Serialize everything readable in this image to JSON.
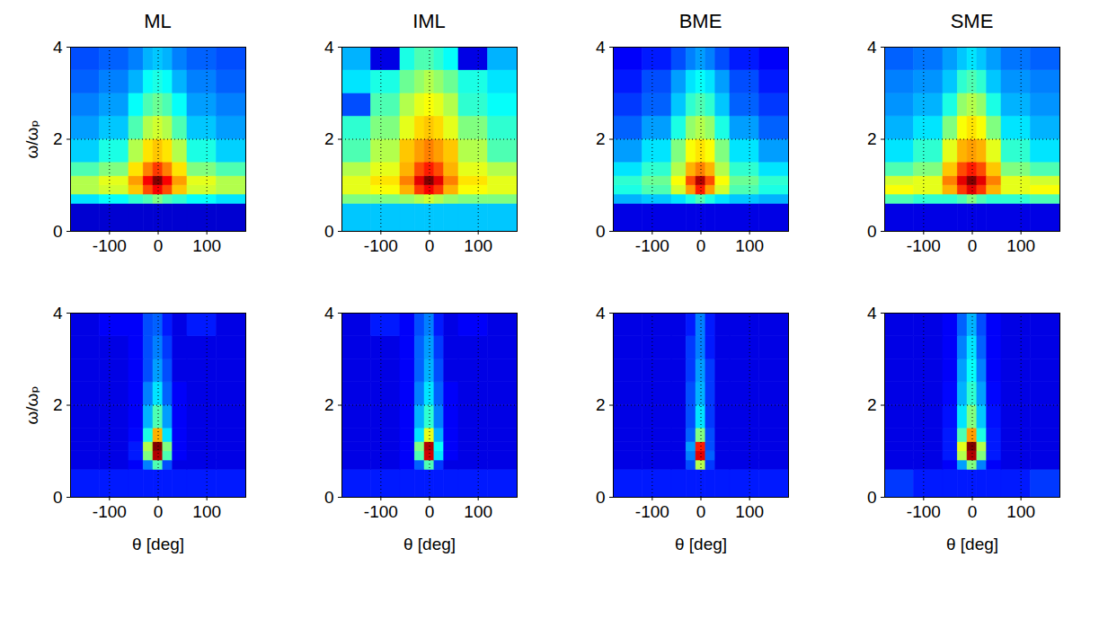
{
  "chart_data": [
    {
      "type": "heatmap",
      "title": "ML",
      "ylabel": "ω/ωₚ",
      "xlim": [
        -180,
        180
      ],
      "xticks": [
        -100,
        0,
        100
      ],
      "ylim": [
        0,
        4
      ],
      "yticks": [
        0,
        2,
        4
      ],
      "grid": true,
      "zlim": [
        0,
        1
      ],
      "x_edges": [
        -180,
        -120,
        -60,
        -30,
        -10,
        10,
        30,
        60,
        120,
        180
      ],
      "y_edges": [
        0,
        0.6,
        0.8,
        1.0,
        1.2,
        1.5,
        2,
        2.5,
        3,
        3.5,
        4
      ],
      "cells": [
        [
          0.08,
          0.08,
          0.08,
          0.08,
          0.08,
          0.08,
          0.08,
          0.08,
          0.08
        ],
        [
          0.35,
          0.38,
          0.42,
          0.45,
          0.5,
          0.45,
          0.42,
          0.38,
          0.35
        ],
        [
          0.55,
          0.58,
          0.68,
          0.8,
          0.88,
          0.8,
          0.68,
          0.58,
          0.55
        ],
        [
          0.55,
          0.6,
          0.72,
          0.88,
          1.0,
          0.88,
          0.72,
          0.6,
          0.55
        ],
        [
          0.45,
          0.5,
          0.65,
          0.75,
          0.82,
          0.75,
          0.65,
          0.5,
          0.45
        ],
        [
          0.33,
          0.4,
          0.55,
          0.65,
          0.68,
          0.65,
          0.55,
          0.4,
          0.33
        ],
        [
          0.28,
          0.32,
          0.45,
          0.55,
          0.58,
          0.55,
          0.45,
          0.32,
          0.28
        ],
        [
          0.25,
          0.28,
          0.38,
          0.45,
          0.48,
          0.45,
          0.38,
          0.28,
          0.25
        ],
        [
          0.22,
          0.25,
          0.3,
          0.38,
          0.4,
          0.38,
          0.3,
          0.25,
          0.22
        ],
        [
          0.2,
          0.22,
          0.25,
          0.3,
          0.32,
          0.3,
          0.25,
          0.22,
          0.2
        ]
      ]
    },
    {
      "type": "heatmap",
      "title": "IML",
      "xlim": [
        -180,
        180
      ],
      "xticks": [
        -100,
        0,
        100
      ],
      "ylim": [
        0,
        4
      ],
      "yticks": [
        0,
        2,
        4
      ],
      "grid": true,
      "zlim": [
        0,
        1
      ],
      "x_edges": [
        -180,
        -120,
        -60,
        -30,
        -10,
        10,
        30,
        60,
        120,
        180
      ],
      "y_edges": [
        0,
        0.6,
        0.8,
        1.0,
        1.2,
        1.5,
        2,
        2.5,
        3,
        3.5,
        4
      ],
      "cells": [
        [
          0.32,
          0.32,
          0.32,
          0.32,
          0.32,
          0.32,
          0.32,
          0.32,
          0.32
        ],
        [
          0.5,
          0.5,
          0.52,
          0.55,
          0.58,
          0.55,
          0.52,
          0.5,
          0.5
        ],
        [
          0.6,
          0.62,
          0.7,
          0.82,
          0.88,
          0.82,
          0.7,
          0.62,
          0.6
        ],
        [
          0.6,
          0.65,
          0.75,
          0.9,
          1.0,
          0.9,
          0.75,
          0.65,
          0.6
        ],
        [
          0.55,
          0.6,
          0.7,
          0.8,
          0.85,
          0.8,
          0.7,
          0.6,
          0.55
        ],
        [
          0.45,
          0.55,
          0.68,
          0.72,
          0.75,
          0.72,
          0.68,
          0.55,
          0.45
        ],
        [
          0.42,
          0.5,
          0.6,
          0.66,
          0.68,
          0.66,
          0.6,
          0.5,
          0.42
        ],
        [
          0.2,
          0.45,
          0.55,
          0.6,
          0.62,
          0.6,
          0.55,
          0.42,
          0.38
        ],
        [
          0.35,
          0.4,
          0.48,
          0.52,
          0.55,
          0.52,
          0.48,
          0.4,
          0.35
        ],
        [
          0.3,
          0.1,
          0.4,
          0.45,
          0.45,
          0.42,
          0.38,
          0.1,
          0.3
        ]
      ]
    },
    {
      "type": "heatmap",
      "title": "BME",
      "xlim": [
        -180,
        180
      ],
      "xticks": [
        -100,
        0,
        100
      ],
      "ylim": [
        0,
        4
      ],
      "yticks": [
        0,
        2,
        4
      ],
      "grid": true,
      "zlim": [
        0,
        1
      ],
      "x_edges": [
        -180,
        -120,
        -60,
        -30,
        -10,
        10,
        30,
        60,
        120,
        180
      ],
      "y_edges": [
        0,
        0.6,
        0.8,
        1.0,
        1.2,
        1.5,
        2,
        2.5,
        3,
        3.5,
        4
      ],
      "cells": [
        [
          0.1,
          0.1,
          0.1,
          0.1,
          0.1,
          0.1,
          0.1,
          0.1,
          0.1
        ],
        [
          0.3,
          0.32,
          0.35,
          0.4,
          0.45,
          0.4,
          0.35,
          0.32,
          0.3
        ],
        [
          0.4,
          0.45,
          0.58,
          0.72,
          0.85,
          0.72,
          0.58,
          0.45,
          0.4
        ],
        [
          0.42,
          0.48,
          0.62,
          0.8,
          0.95,
          0.8,
          0.62,
          0.48,
          0.42
        ],
        [
          0.35,
          0.42,
          0.55,
          0.7,
          0.75,
          0.7,
          0.55,
          0.42,
          0.35
        ],
        [
          0.28,
          0.35,
          0.5,
          0.62,
          0.65,
          0.62,
          0.5,
          0.35,
          0.28
        ],
        [
          0.22,
          0.28,
          0.4,
          0.52,
          0.55,
          0.52,
          0.4,
          0.28,
          0.22
        ],
        [
          0.18,
          0.22,
          0.32,
          0.42,
          0.45,
          0.42,
          0.32,
          0.22,
          0.18
        ],
        [
          0.15,
          0.2,
          0.28,
          0.35,
          0.38,
          0.35,
          0.28,
          0.2,
          0.15
        ],
        [
          0.12,
          0.15,
          0.2,
          0.25,
          0.28,
          0.25,
          0.2,
          0.15,
          0.12
        ]
      ]
    },
    {
      "type": "heatmap",
      "title": "SME",
      "xlim": [
        -180,
        180
      ],
      "xticks": [
        -100,
        0,
        100
      ],
      "ylim": [
        0,
        4
      ],
      "yticks": [
        0,
        2,
        4
      ],
      "grid": true,
      "zlim": [
        0,
        1
      ],
      "x_edges": [
        -180,
        -120,
        -60,
        -30,
        -10,
        10,
        30,
        60,
        120,
        180
      ],
      "y_edges": [
        0,
        0.6,
        0.8,
        1.0,
        1.2,
        1.5,
        2,
        2.5,
        3,
        3.5,
        4
      ],
      "cells": [
        [
          0.1,
          0.1,
          0.1,
          0.1,
          0.1,
          0.1,
          0.1,
          0.1,
          0.1
        ],
        [
          0.45,
          0.42,
          0.42,
          0.45,
          0.5,
          0.45,
          0.42,
          0.42,
          0.45
        ],
        [
          0.62,
          0.6,
          0.7,
          0.82,
          0.9,
          0.82,
          0.7,
          0.6,
          0.62
        ],
        [
          0.58,
          0.6,
          0.75,
          0.9,
          1.0,
          0.9,
          0.75,
          0.6,
          0.58
        ],
        [
          0.45,
          0.5,
          0.68,
          0.8,
          0.85,
          0.8,
          0.68,
          0.5,
          0.45
        ],
        [
          0.35,
          0.42,
          0.6,
          0.7,
          0.72,
          0.7,
          0.6,
          0.42,
          0.35
        ],
        [
          0.3,
          0.35,
          0.5,
          0.62,
          0.65,
          0.62,
          0.5,
          0.35,
          0.3
        ],
        [
          0.27,
          0.3,
          0.4,
          0.52,
          0.55,
          0.52,
          0.4,
          0.3,
          0.27
        ],
        [
          0.25,
          0.27,
          0.32,
          0.42,
          0.45,
          0.42,
          0.32,
          0.27,
          0.25
        ],
        [
          0.22,
          0.24,
          0.28,
          0.32,
          0.35,
          0.32,
          0.28,
          0.24,
          0.22
        ]
      ]
    },
    {
      "type": "heatmap",
      "xlabel": "θ [deg]",
      "ylabel": "ω/ωₚ",
      "xlim": [
        -180,
        180
      ],
      "xticks": [
        -100,
        0,
        100
      ],
      "ylim": [
        0,
        4
      ],
      "yticks": [
        0,
        2,
        4
      ],
      "grid": true,
      "zlim": [
        0,
        1
      ],
      "x_edges": [
        -180,
        -120,
        -60,
        -30,
        -10,
        10,
        30,
        60,
        120,
        180
      ],
      "y_edges": [
        0,
        0.6,
        0.8,
        1.0,
        1.2,
        1.5,
        2,
        2.5,
        3,
        3.5,
        4
      ],
      "cells": [
        [
          0.15,
          0.15,
          0.15,
          0.15,
          0.15,
          0.15,
          0.15,
          0.15,
          0.15
        ],
        [
          0.1,
          0.1,
          0.12,
          0.25,
          0.45,
          0.2,
          0.1,
          0.1,
          0.1
        ],
        [
          0.1,
          0.1,
          0.15,
          0.5,
          0.95,
          0.45,
          0.12,
          0.1,
          0.1
        ],
        [
          0.1,
          0.1,
          0.15,
          0.55,
          1.0,
          0.5,
          0.12,
          0.1,
          0.1
        ],
        [
          0.1,
          0.1,
          0.13,
          0.4,
          0.7,
          0.35,
          0.12,
          0.1,
          0.1
        ],
        [
          0.1,
          0.1,
          0.12,
          0.3,
          0.45,
          0.28,
          0.12,
          0.1,
          0.1
        ],
        [
          0.1,
          0.1,
          0.12,
          0.25,
          0.35,
          0.22,
          0.12,
          0.1,
          0.1
        ],
        [
          0.1,
          0.1,
          0.12,
          0.2,
          0.28,
          0.2,
          0.1,
          0.1,
          0.1
        ],
        [
          0.1,
          0.1,
          0.12,
          0.2,
          0.25,
          0.18,
          0.1,
          0.1,
          0.1
        ],
        [
          0.1,
          0.12,
          0.12,
          0.2,
          0.22,
          0.15,
          0.1,
          0.15,
          0.1
        ]
      ]
    },
    {
      "type": "heatmap",
      "xlabel": "θ [deg]",
      "xlim": [
        -180,
        180
      ],
      "xticks": [
        -100,
        0,
        100
      ],
      "ylim": [
        0,
        4
      ],
      "yticks": [
        0,
        2,
        4
      ],
      "grid": true,
      "zlim": [
        0,
        1
      ],
      "x_edges": [
        -180,
        -120,
        -60,
        -30,
        -10,
        10,
        30,
        60,
        120,
        180
      ],
      "y_edges": [
        0,
        0.6,
        0.8,
        1.0,
        1.2,
        1.5,
        2,
        2.5,
        3,
        3.5,
        4
      ],
      "cells": [
        [
          0.15,
          0.15,
          0.15,
          0.15,
          0.15,
          0.15,
          0.15,
          0.15,
          0.15
        ],
        [
          0.1,
          0.1,
          0.12,
          0.22,
          0.45,
          0.18,
          0.1,
          0.1,
          0.1
        ],
        [
          0.1,
          0.1,
          0.12,
          0.45,
          0.92,
          0.35,
          0.12,
          0.1,
          0.1
        ],
        [
          0.1,
          0.1,
          0.12,
          0.5,
          0.95,
          0.38,
          0.12,
          0.1,
          0.1
        ],
        [
          0.1,
          0.1,
          0.12,
          0.35,
          0.6,
          0.3,
          0.12,
          0.1,
          0.1
        ],
        [
          0.1,
          0.1,
          0.12,
          0.3,
          0.42,
          0.25,
          0.12,
          0.1,
          0.1
        ],
        [
          0.1,
          0.1,
          0.12,
          0.25,
          0.35,
          0.22,
          0.12,
          0.1,
          0.1
        ],
        [
          0.1,
          0.1,
          0.12,
          0.22,
          0.3,
          0.2,
          0.1,
          0.1,
          0.1
        ],
        [
          0.1,
          0.1,
          0.12,
          0.22,
          0.28,
          0.18,
          0.1,
          0.1,
          0.1
        ],
        [
          0.1,
          0.15,
          0.12,
          0.2,
          0.25,
          0.15,
          0.1,
          0.12,
          0.1
        ]
      ]
    },
    {
      "type": "heatmap",
      "xlabel": "θ [deg]",
      "xlim": [
        -180,
        180
      ],
      "xticks": [
        -100,
        0,
        100
      ],
      "ylim": [
        0,
        4
      ],
      "yticks": [
        0,
        2,
        4
      ],
      "grid": true,
      "zlim": [
        0,
        1
      ],
      "x_edges": [
        -180,
        -120,
        -60,
        -30,
        -10,
        10,
        30,
        60,
        120,
        180
      ],
      "y_edges": [
        0,
        0.6,
        0.8,
        1.0,
        1.2,
        1.5,
        2,
        2.5,
        3,
        3.5,
        4
      ],
      "cells": [
        [
          0.15,
          0.15,
          0.15,
          0.15,
          0.15,
          0.15,
          0.15,
          0.15,
          0.15
        ],
        [
          0.1,
          0.1,
          0.1,
          0.2,
          0.55,
          0.18,
          0.1,
          0.1,
          0.1
        ],
        [
          0.1,
          0.1,
          0.1,
          0.25,
          0.9,
          0.22,
          0.1,
          0.1,
          0.1
        ],
        [
          0.1,
          0.1,
          0.1,
          0.28,
          0.85,
          0.2,
          0.1,
          0.1,
          0.1
        ],
        [
          0.1,
          0.1,
          0.1,
          0.22,
          0.5,
          0.2,
          0.1,
          0.1,
          0.1
        ],
        [
          0.1,
          0.1,
          0.1,
          0.2,
          0.35,
          0.18,
          0.1,
          0.1,
          0.1
        ],
        [
          0.1,
          0.1,
          0.1,
          0.2,
          0.3,
          0.18,
          0.1,
          0.1,
          0.1
        ],
        [
          0.1,
          0.1,
          0.1,
          0.18,
          0.28,
          0.18,
          0.1,
          0.1,
          0.1
        ],
        [
          0.1,
          0.1,
          0.1,
          0.18,
          0.25,
          0.15,
          0.1,
          0.1,
          0.1
        ],
        [
          0.1,
          0.1,
          0.1,
          0.15,
          0.25,
          0.15,
          0.1,
          0.1,
          0.1
        ]
      ]
    },
    {
      "type": "heatmap",
      "xlabel": "θ [deg]",
      "xlim": [
        -180,
        180
      ],
      "xticks": [
        -100,
        0,
        100
      ],
      "ylim": [
        0,
        4
      ],
      "yticks": [
        0,
        2,
        4
      ],
      "grid": true,
      "zlim": [
        0,
        1
      ],
      "x_edges": [
        -180,
        -120,
        -60,
        -30,
        -10,
        10,
        30,
        60,
        120,
        180
      ],
      "y_edges": [
        0,
        0.6,
        0.8,
        1.0,
        1.2,
        1.5,
        2,
        2.5,
        3,
        3.5,
        4
      ],
      "cells": [
        [
          0.18,
          0.15,
          0.15,
          0.15,
          0.15,
          0.15,
          0.15,
          0.15,
          0.18
        ],
        [
          0.1,
          0.1,
          0.12,
          0.28,
          0.5,
          0.25,
          0.12,
          0.1,
          0.1
        ],
        [
          0.1,
          0.1,
          0.15,
          0.55,
          0.95,
          0.5,
          0.15,
          0.1,
          0.1
        ],
        [
          0.1,
          0.1,
          0.15,
          0.6,
          1.0,
          0.55,
          0.15,
          0.1,
          0.1
        ],
        [
          0.1,
          0.1,
          0.15,
          0.45,
          0.72,
          0.4,
          0.15,
          0.1,
          0.1
        ],
        [
          0.1,
          0.1,
          0.14,
          0.35,
          0.5,
          0.32,
          0.14,
          0.1,
          0.1
        ],
        [
          0.1,
          0.1,
          0.13,
          0.3,
          0.42,
          0.28,
          0.13,
          0.1,
          0.1
        ],
        [
          0.1,
          0.1,
          0.12,
          0.28,
          0.38,
          0.25,
          0.12,
          0.1,
          0.1
        ],
        [
          0.1,
          0.1,
          0.12,
          0.25,
          0.35,
          0.22,
          0.12,
          0.1,
          0.1
        ],
        [
          0.1,
          0.1,
          0.12,
          0.22,
          0.3,
          0.2,
          0.12,
          0.1,
          0.1
        ]
      ]
    }
  ]
}
